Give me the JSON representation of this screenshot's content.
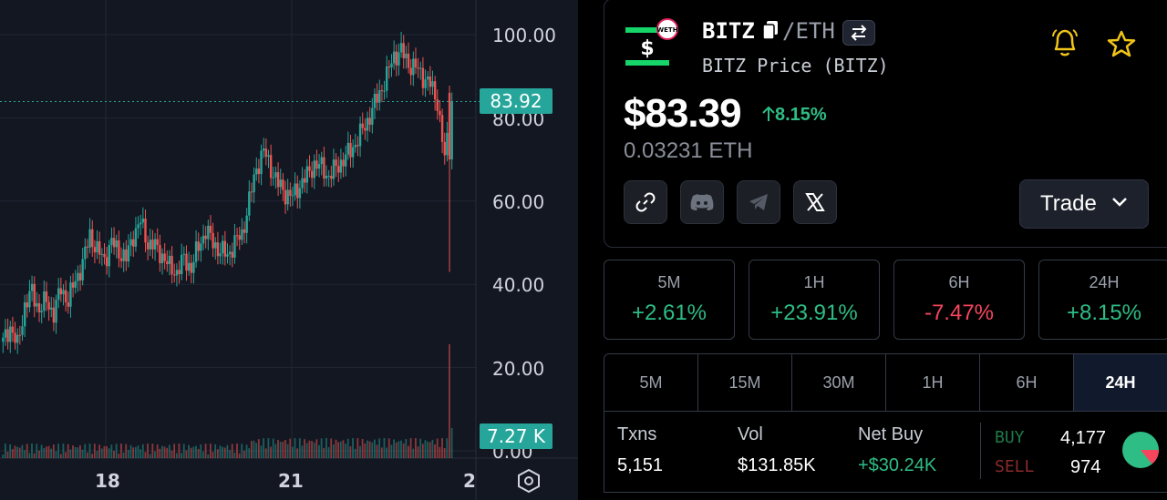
{
  "chart": {
    "y_ticks": [
      "100.00",
      "80.00",
      "60.00",
      "40.00",
      "20.00",
      "0.00"
    ],
    "x_ticks": [
      "18",
      "21",
      "2"
    ],
    "last_price_tag": "83.92",
    "volume_tag": "7.27 K",
    "colors": {
      "up": "#26a69a",
      "down": "#ef5350",
      "background": "#131722"
    }
  },
  "chart_data": {
    "type": "candlestick",
    "ylim": [
      0,
      100
    ],
    "last_price": 83.92,
    "last_volume": "7.27 K",
    "x_ticks": [
      "18",
      "21",
      "2"
    ],
    "y_ticks": [
      0,
      20,
      40,
      60,
      80,
      100
    ],
    "close_series": [
      26,
      30,
      25,
      35,
      38,
      34,
      36,
      33,
      39,
      36,
      41,
      45,
      52,
      48,
      46,
      50,
      48,
      46,
      52,
      55,
      50,
      49,
      47,
      44,
      43,
      46,
      44,
      49,
      53,
      50,
      48,
      47,
      50,
      52,
      60,
      68,
      72,
      68,
      64,
      62,
      61,
      64,
      66,
      69,
      68,
      66,
      68,
      70,
      72,
      75,
      78,
      82,
      86,
      90,
      95,
      96,
      93,
      92,
      90,
      88,
      84,
      70,
      84
    ]
  },
  "token": {
    "name": "BITZ",
    "quote": "/ETH",
    "subtitle": "BITZ Price (BITZ)",
    "logo_badge": "WETH",
    "logo_symbol": "$"
  },
  "price": {
    "usd": "$83.39",
    "change": "8.15%",
    "eth": "0.03231 ETH"
  },
  "socials": [
    "link-icon",
    "discord-icon",
    "telegram-icon",
    "x-icon"
  ],
  "trade_label": "Trade",
  "price_changes": [
    {
      "label": "5M",
      "value": "+2.61%",
      "color": "#2ebd85"
    },
    {
      "label": "1H",
      "value": "+23.91%",
      "color": "#2ebd85"
    },
    {
      "label": "6H",
      "value": "-7.47%",
      "color": "#f6465d"
    },
    {
      "label": "24H",
      "value": "+8.15%",
      "color": "#2ebd85"
    }
  ],
  "timeframes": [
    "5M",
    "15M",
    "30M",
    "1H",
    "6H",
    "24H"
  ],
  "active_timeframe": "24H",
  "stats": {
    "txns_label": "Txns",
    "txns": "5,151",
    "vol_label": "Vol",
    "vol": "$131.85K",
    "netbuy_label": "Net Buy",
    "netbuy": "+$30.24K",
    "buy_label": "BUY",
    "buy": "4,177",
    "sell_label": "SELL",
    "sell": "974"
  }
}
